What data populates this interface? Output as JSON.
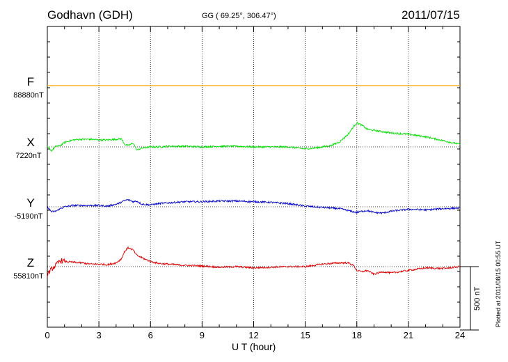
{
  "header": {
    "station": "Godhavn (GDH)",
    "coords": "GG ( 69.25°, 306.47°)",
    "date": "2011/07/15"
  },
  "footer": {
    "xaxis_label": "U T (hour)",
    "plotted": "Plotted at 2011/08/15 00:55 UT",
    "scale_label": "500 nT"
  },
  "colors": {
    "F": "#ffa500",
    "X": "#00e000",
    "Y": "#0000cc",
    "Z": "#e00000",
    "grid": "#000000"
  },
  "chart_data": {
    "type": "line",
    "title": "Godhavn (GDH)",
    "xlabel": "U T (hour)",
    "xlim": [
      0,
      24
    ],
    "xticks": [
      "0",
      "3",
      "6",
      "9",
      "12",
      "15",
      "18",
      "21",
      "24"
    ],
    "scale_bar_nT": 500,
    "x": [
      0,
      0.25,
      0.5,
      0.75,
      1,
      1.5,
      2,
      2.5,
      3,
      3.5,
      4,
      4.3,
      4.5,
      4.7,
      5,
      5.2,
      5.5,
      6,
      6.5,
      7,
      8,
      9,
      10,
      11,
      12,
      13,
      14,
      15,
      15.5,
      16,
      16.5,
      17,
      17.5,
      17.8,
      18,
      18.3,
      18.6,
      19,
      19.5,
      20,
      21,
      22,
      23,
      24
    ],
    "series": [
      {
        "name": "F",
        "baseline_label": "88880nT",
        "color": "#ffa500",
        "values_nT": [
          0,
          0,
          0,
          0,
          0,
          0,
          0,
          0,
          0,
          0,
          0,
          0,
          0,
          0,
          0,
          0,
          0,
          0,
          0,
          0,
          0,
          0,
          0,
          0,
          0,
          0,
          0,
          0,
          0,
          0,
          0,
          0,
          0,
          0,
          0,
          0,
          0,
          0,
          0,
          0,
          0,
          0,
          0,
          0
        ]
      },
      {
        "name": "X",
        "baseline_label": "7220nT",
        "color": "#00e000",
        "values_nT": [
          0,
          -30,
          5,
          10,
          35,
          55,
          60,
          60,
          55,
          55,
          60,
          65,
          20,
          10,
          30,
          -25,
          -10,
          0,
          0,
          5,
          5,
          0,
          5,
          5,
          0,
          0,
          0,
          -15,
          -10,
          0,
          10,
          40,
          100,
          160,
          190,
          170,
          140,
          130,
          120,
          110,
          100,
          80,
          50,
          20
        ]
      },
      {
        "name": "Y",
        "baseline_label": "-5190nT",
        "color": "#0000cc",
        "values_nT": [
          0,
          -40,
          -35,
          -15,
          0,
          10,
          10,
          10,
          10,
          5,
          20,
          35,
          50,
          55,
          40,
          45,
          20,
          15,
          25,
          30,
          40,
          40,
          45,
          45,
          40,
          35,
          25,
          5,
          0,
          -5,
          -10,
          -15,
          -30,
          -40,
          -45,
          -35,
          -30,
          -45,
          -50,
          -35,
          -20,
          -25,
          -15,
          -10
        ]
      },
      {
        "name": "Z",
        "baseline_label": "55810nT",
        "color": "#e00000",
        "values_nT": [
          -60,
          -20,
          10,
          50,
          40,
          35,
          30,
          20,
          20,
          15,
          30,
          60,
          120,
          150,
          130,
          90,
          70,
          40,
          25,
          20,
          10,
          5,
          -5,
          0,
          -10,
          -5,
          0,
          0,
          10,
          20,
          25,
          30,
          30,
          10,
          -30,
          -40,
          -30,
          -60,
          -40,
          -50,
          -30,
          -10,
          -15,
          0
        ]
      }
    ]
  }
}
